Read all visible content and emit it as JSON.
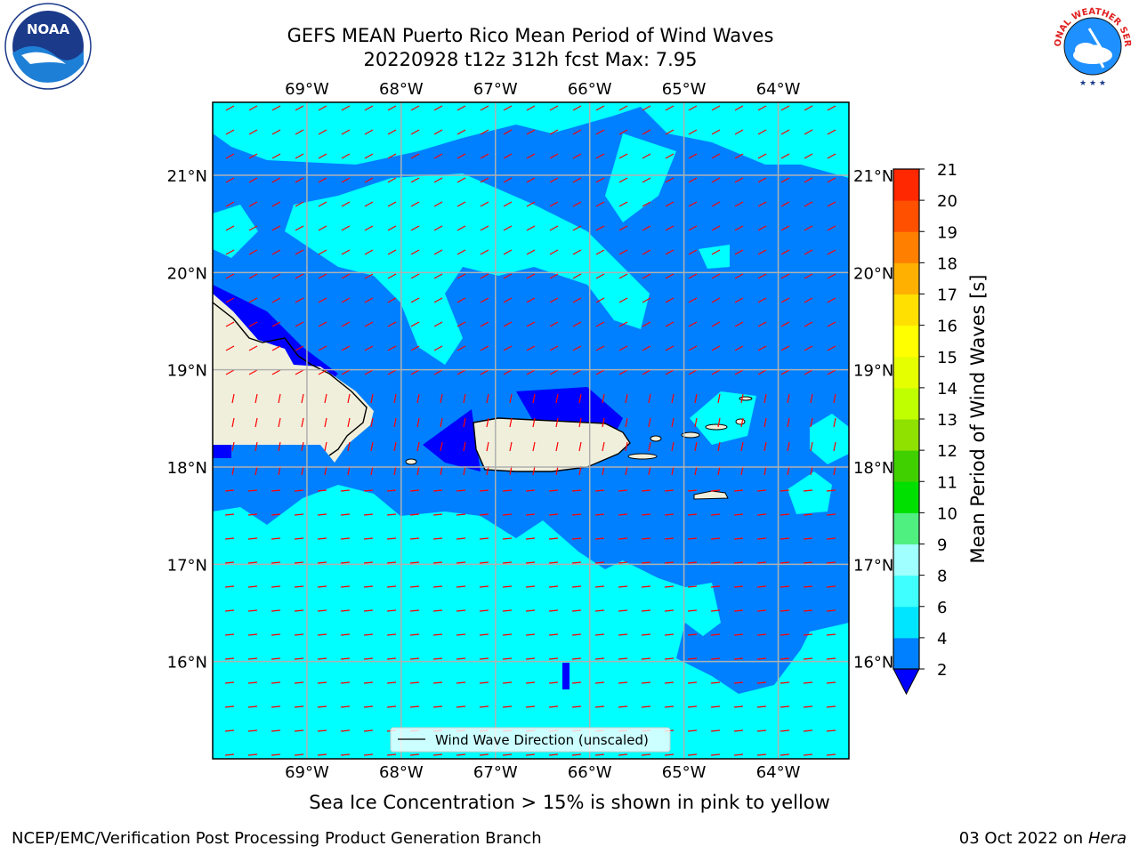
{
  "title": {
    "line1": "GEFS MEAN Puerto Rico Mean Period of Wind Waves",
    "line2": "20220928 t12z 312h fcst   Max: 7.95"
  },
  "map": {
    "lon_labels": [
      "69°W",
      "68°W",
      "67°W",
      "66°W",
      "65°W",
      "64°W"
    ],
    "lat_labels": [
      "21°N",
      "20°N",
      "19°N",
      "18°N",
      "17°N",
      "16°N"
    ],
    "lon_range": [
      -70.0,
      -63.25
    ],
    "lat_range": [
      15.0,
      21.75
    ],
    "land_color": "#efefdc",
    "ocean_colors": {
      "low": "#0000ff",
      "mid": "#0080ff",
      "high": "#00ffff"
    },
    "arrow_color": "#ff0000",
    "arrow_direction": "toward southwest (north) / west (south)",
    "legend": {
      "label": "Wind Wave Direction (unscaled)"
    }
  },
  "colorbar": {
    "label": "Mean Period of Wind Waves [s]",
    "ticks": [
      "2",
      "4",
      "6",
      "8",
      "9",
      "10",
      "11",
      "12",
      "13",
      "14",
      "15",
      "16",
      "17",
      "18",
      "19",
      "20",
      "21"
    ],
    "colors": [
      "#0080ff",
      "#00e5ff",
      "#40ffff",
      "#a0ffff",
      "#50f080",
      "#00e000",
      "#40d000",
      "#90e000",
      "#c0ff00",
      "#e6ff00",
      "#ffff00",
      "#ffe000",
      "#ffb000",
      "#ff8000",
      "#ff5000",
      "#ff2800",
      "#ff0000"
    ],
    "extend_color": "#0000ff"
  },
  "caption": "Sea Ice Concentration > 15% is shown in pink to yellow",
  "footer": {
    "left": "NCEP/EMC/Verification Post Processing Product Generation Branch",
    "right_date": "03 Oct 2022 on ",
    "right_host": "Hera"
  },
  "logos": {
    "noaa": "NOAA",
    "nws": "NATIONAL WEATHER SERVICE"
  }
}
